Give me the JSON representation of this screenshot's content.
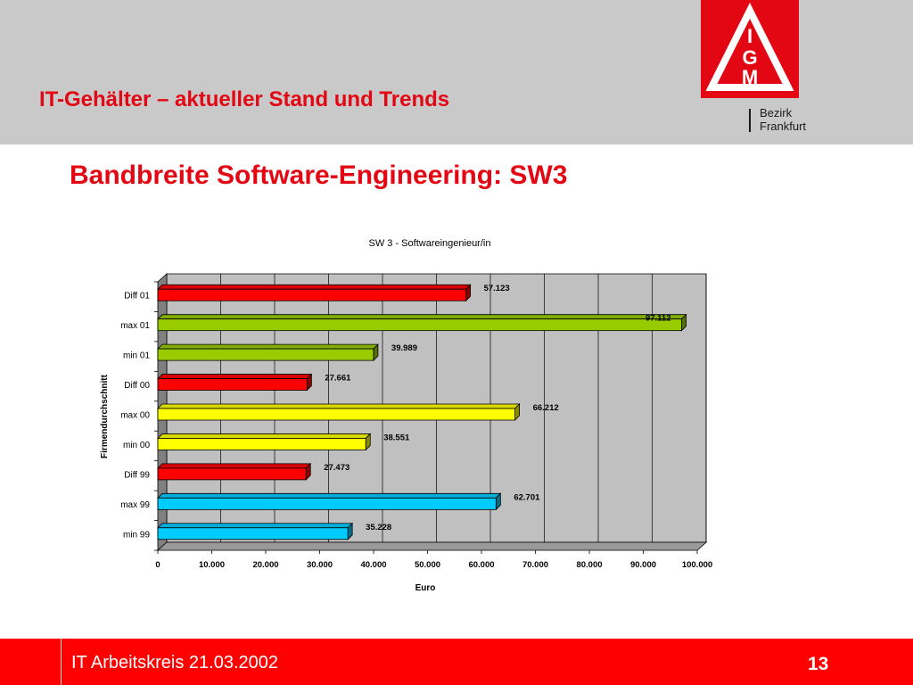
{
  "header": {
    "title": "IT-Gehälter – aktueller Stand und Trends",
    "logo": {
      "icon": "ig-metall-logo",
      "letters": "IGM",
      "line1": "Bezirk",
      "line2": "Frankfurt",
      "color": "#e30613"
    }
  },
  "slide": {
    "title": "Bandbreite Software-Engineering: SW3"
  },
  "chart_data": {
    "type": "bar",
    "orientation": "horizontal",
    "title": "SW 3 - Softwareingenieur/in",
    "xlabel": "Euro",
    "ylabel": "Firmendurchschnitt",
    "xlim": [
      0,
      100000
    ],
    "x_ticks": [
      "0",
      "10.000",
      "20.000",
      "30.000",
      "40.000",
      "50.000",
      "60.000",
      "70.000",
      "80.000",
      "90.000",
      "100.000"
    ],
    "grid": true,
    "legend": "none",
    "categories": [
      "Diff 01",
      "max 01",
      "min 01",
      "Diff  00",
      "max 00",
      "min 00",
      "Diff 99",
      "max 99",
      "min 99"
    ],
    "values": [
      57123,
      97112,
      39989,
      27661,
      66212,
      38551,
      27473,
      62701,
      35228
    ],
    "value_labels": [
      "57.123",
      "97.112",
      "39.989",
      "27.661",
      "66.212",
      "38.551",
      "27.473",
      "62.701",
      "35.228"
    ],
    "colors": [
      "#ff0000",
      "#99cc00",
      "#99cc00",
      "#ff0000",
      "#ffff00",
      "#ffff00",
      "#ff0000",
      "#00ccff",
      "#00ccff"
    ]
  },
  "footer": {
    "text": "IT Arbeitskreis 21.03.2002",
    "page_number": "13"
  }
}
